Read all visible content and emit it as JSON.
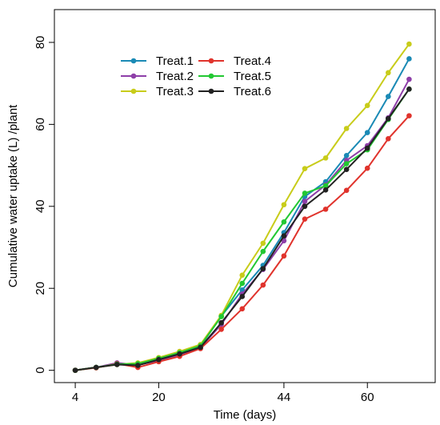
{
  "chart_data": {
    "type": "line",
    "xlabel": "Time (days)",
    "ylabel": "Cumulative water uptake (L) /plant",
    "xlim": [
      0,
      73
    ],
    "ylim": [
      -3,
      88
    ],
    "x_ticks": [
      4,
      20,
      44,
      60
    ],
    "y_ticks": [
      0,
      20,
      40,
      60,
      80
    ],
    "grid": false,
    "legend_position": "top-left",
    "x": [
      4,
      8,
      12,
      16,
      20,
      24,
      28,
      32,
      36,
      40,
      44,
      48,
      52,
      56,
      60,
      64,
      68
    ],
    "series": [
      {
        "name": "Treat.1",
        "color": "#1a8ab5",
        "values": [
          0,
          0.7,
          1.5,
          1.4,
          2.6,
          4.2,
          5.9,
          13.2,
          19.6,
          25.6,
          33.6,
          42.4,
          46.0,
          52.4,
          58.0,
          66.8,
          76.0
        ]
      },
      {
        "name": "Treat.2",
        "color": "#8e3fa8",
        "values": [
          0,
          0.7,
          1.8,
          1.3,
          2.4,
          3.8,
          5.5,
          11.2,
          18.6,
          24.6,
          31.6,
          41.2,
          45.2,
          51.2,
          54.8,
          61.6,
          71.0
        ]
      },
      {
        "name": "Treat.3",
        "color": "#c8cc1a",
        "values": [
          0,
          0.7,
          1.4,
          1.8,
          3.1,
          4.6,
          6.3,
          13.4,
          23.2,
          31.0,
          40.4,
          49.2,
          51.8,
          59.0,
          64.6,
          72.6,
          79.6
        ]
      },
      {
        "name": "Treat.4",
        "color": "#e0332c",
        "values": [
          0,
          0.6,
          1.6,
          0.7,
          2.1,
          3.4,
          5.3,
          10.0,
          15.0,
          20.8,
          27.9,
          36.9,
          39.3,
          43.9,
          49.3,
          56.5,
          62.1
        ]
      },
      {
        "name": "Treat.5",
        "color": "#22c832",
        "values": [
          0,
          0.7,
          1.5,
          1.6,
          2.9,
          4.3,
          6.0,
          13.1,
          21.2,
          29.0,
          36.2,
          43.2,
          45.0,
          50.4,
          53.8,
          61.2,
          68.6
        ]
      },
      {
        "name": "Treat.6",
        "color": "#222222",
        "values": [
          0,
          0.7,
          1.4,
          1.2,
          2.6,
          4.0,
          5.6,
          11.6,
          18.0,
          24.8,
          32.8,
          40.0,
          44.0,
          49.0,
          54.2,
          61.4,
          68.6
        ]
      }
    ]
  }
}
